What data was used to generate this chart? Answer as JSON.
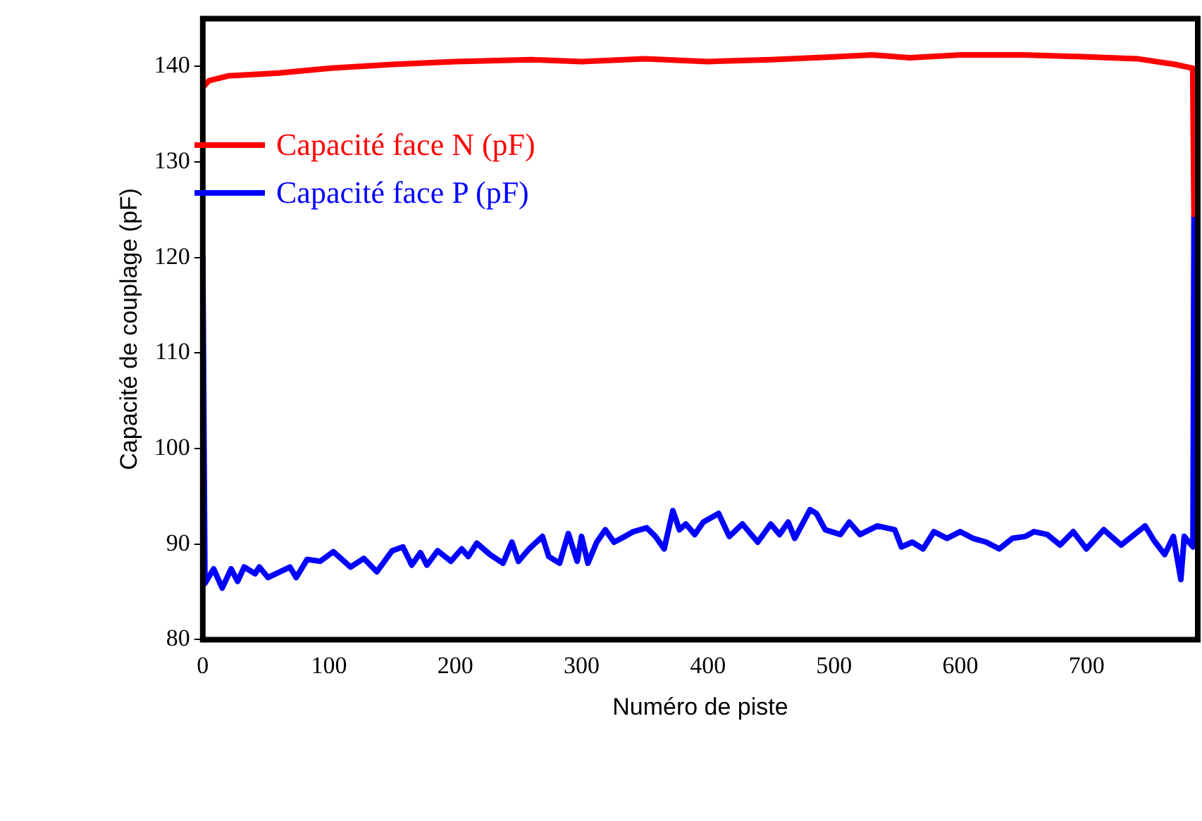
{
  "chart_data": {
    "type": "line",
    "xlabel": "Numéro de piste",
    "ylabel": "Capacité de couplage (pF)",
    "xlim": [
      0,
      788
    ],
    "xticks": [
      0,
      100,
      200,
      300,
      400,
      500,
      600,
      700
    ],
    "ylim": [
      80,
      145
    ],
    "yticks": [
      80,
      90,
      100,
      110,
      120,
      130,
      140
    ],
    "grid": false,
    "legend": "top left",
    "marker": "none",
    "line_style": "solid",
    "series": [
      {
        "name": "Capacité face N (pF)",
        "color": "#ff0000",
        "x": [
          0,
          5,
          20,
          60,
          100,
          150,
          200,
          260,
          300,
          350,
          400,
          450,
          500,
          530,
          560,
          600,
          650,
          700,
          740,
          770,
          784,
          785
        ],
        "values": [
          137.8,
          138.5,
          139,
          139.3,
          139.8,
          140.2,
          140.5,
          140.7,
          140.5,
          140.8,
          140.5,
          140.7,
          141,
          141.2,
          140.9,
          141.2,
          141.2,
          141,
          140.8,
          140.2,
          139.8,
          124.5
        ]
      },
      {
        "name": "Capacité face P (pF)",
        "color": "#0000ff",
        "x": [
          0,
          1.7,
          8.6,
          15.4,
          22.4,
          27.6,
          32.8,
          41.4,
          44.8,
          51.7,
          69,
          74,
          82.7,
          93,
          103.4,
          117,
          127.5,
          137.8,
          150,
          158.5,
          165.5,
          172.4,
          177.5,
          186,
          196.5,
          205,
          210.3,
          217,
          227.5,
          237.8,
          244.8,
          250,
          258.5,
          269,
          274,
          282.6,
          289.5,
          296.5,
          300,
          305,
          312,
          318.8,
          325.7,
          334.3,
          341,
          351.6,
          358.5,
          365.4,
          372.3,
          377.5,
          382.6,
          389.6,
          396.4,
          408.5,
          417,
          427.4,
          439.5,
          449.8,
          456.8,
          463.6,
          468.8,
          480.9,
          486,
          493,
          505,
          512,
          520.5,
          534.3,
          548,
          553.3,
          561.9,
          570.5,
          579,
          589.4,
          599.8,
          610,
          620.5,
          630.8,
          641.2,
          651.5,
          658.4,
          668.8,
          679,
          689.4,
          699.8,
          713.5,
          727.3,
          746.3,
          753.2,
          761.8,
          768.7,
          774.6,
          777.3,
          784.2,
          785
        ],
        "values": [
          120,
          85.9,
          87.4,
          85.4,
          87.4,
          86.1,
          87.6,
          86.9,
          87.6,
          86.5,
          87.6,
          86.5,
          88.4,
          88.2,
          89.2,
          87.6,
          88.5,
          87.1,
          89.3,
          89.7,
          87.8,
          89.1,
          87.8,
          89.3,
          88.2,
          89.5,
          88.7,
          90.1,
          88.9,
          88,
          90.2,
          88.2,
          89.5,
          90.8,
          88.7,
          88,
          91.1,
          88.2,
          90.8,
          88,
          90.2,
          91.5,
          90.2,
          90.8,
          91.3,
          91.7,
          90.8,
          89.5,
          93.5,
          91.5,
          92.1,
          91,
          92.3,
          93.2,
          90.8,
          92.1,
          90.2,
          92.1,
          91,
          92.3,
          90.6,
          93.6,
          93.2,
          91.5,
          91,
          92.3,
          91,
          91.9,
          91.5,
          89.7,
          90.2,
          89.5,
          91.3,
          90.6,
          91.3,
          90.6,
          90.2,
          89.5,
          90.6,
          90.8,
          91.3,
          91,
          89.9,
          91.3,
          89.5,
          91.5,
          89.9,
          91.9,
          90.4,
          88.9,
          90.8,
          86.3,
          90.8,
          89.7,
          124.3
        ]
      }
    ]
  }
}
